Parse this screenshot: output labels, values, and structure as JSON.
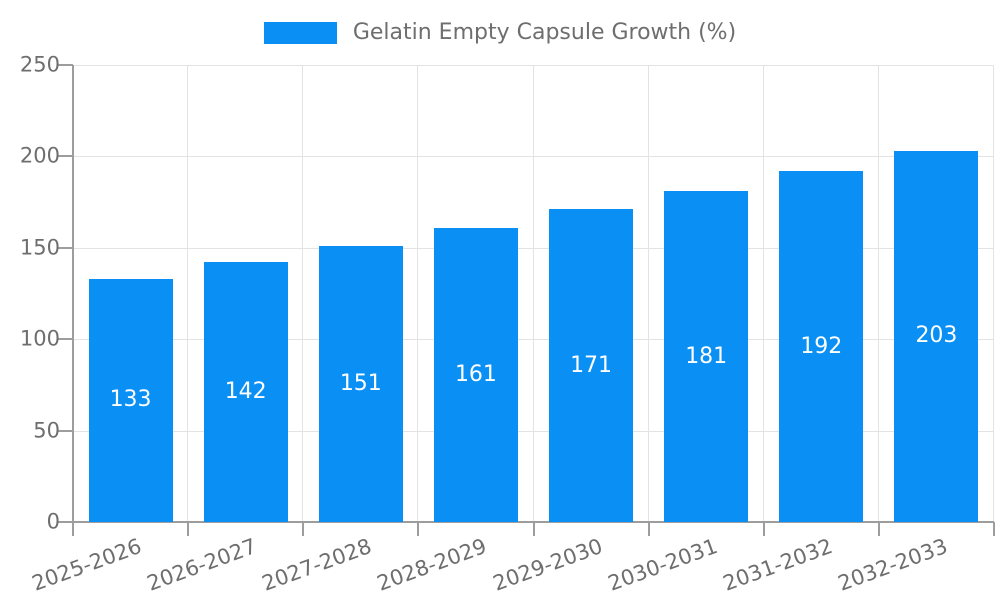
{
  "chart_data": {
    "type": "bar",
    "title": "Gelatin Empty Capsule Growth (%)",
    "categories": [
      "2025-2026",
      "2026-2027",
      "2027-2028",
      "2028-2029",
      "2029-2030",
      "2030-2031",
      "2031-2032",
      "2032-2033"
    ],
    "values": [
      133,
      142,
      151,
      161,
      171,
      181,
      192,
      203
    ],
    "xlabel": "",
    "ylabel": "",
    "ylim": [
      0,
      250
    ],
    "yticks": [
      0,
      50,
      100,
      150,
      200,
      250
    ],
    "grid": true,
    "legend_position": "top-center",
    "x_label_rotation_deg": -20,
    "value_labels_inside_bars": true,
    "colors": {
      "bar": "#0a90f4",
      "axis_line": "#9d9d9d",
      "gridline": "#e3e3e3",
      "tick_text": "#6e6e6e",
      "legend_text": "#6e6e6e",
      "value_label_text": "#ffffff",
      "background": "#ffffff"
    }
  }
}
